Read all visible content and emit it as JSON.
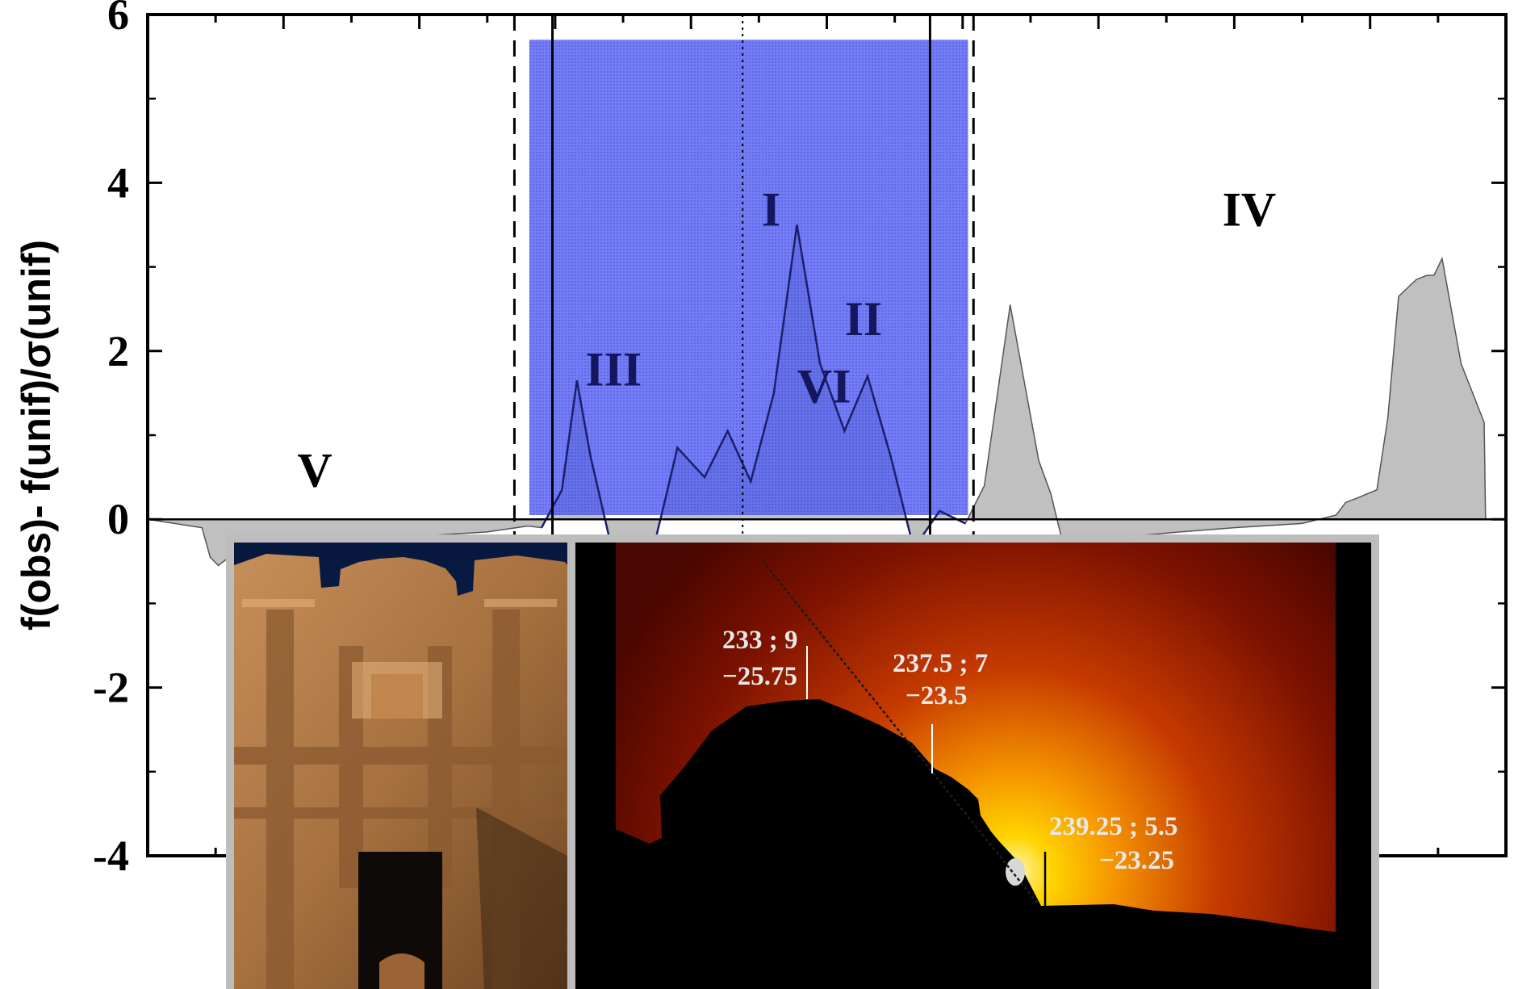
{
  "chart_data": {
    "type": "area",
    "title": "",
    "xlabel": "",
    "ylabel": "f(obs)- f(unif)/σ(unif)",
    "ylim": [
      -4,
      6
    ],
    "yticks": [
      6,
      4,
      2,
      0,
      -2,
      -4
    ],
    "ytick_labels": [
      "6",
      "4",
      "2",
      "0",
      "-2",
      "-4"
    ],
    "xlim": [
      0,
      100
    ],
    "grid": false,
    "legend": "none",
    "colors": {
      "fill": "#c0c0c0",
      "highlight_fill": "#3846e6",
      "highlight_line": "#1b1f6b",
      "label": "#141660"
    },
    "series": [
      {
        "x": [
          0,
          4,
          4.6,
          5.2,
          6,
          8,
          10,
          15,
          20,
          25,
          28,
          29,
          30.5,
          31.6,
          32.6,
          34.1,
          35.5,
          37.3,
          38.2,
          39.0,
          41.0,
          42.7,
          44.4,
          46.1,
          47.8,
          49.5,
          51.3,
          53.0,
          54.7,
          56.4,
          58.3,
          60.2,
          61.6,
          63.5,
          65.6,
          66.5,
          67.4,
          69.4,
          70.0,
          71.0,
          72.5,
          76,
          80,
          85,
          87.5,
          88.2,
          89.0,
          90.5,
          91.3,
          92.1,
          93.4,
          94.2,
          94.7,
          95.3,
          96.7,
          98.4,
          98.5,
          100
        ],
        "y": [
          0,
          -0.1,
          -0.45,
          -0.55,
          -0.45,
          -0.35,
          -0.3,
          -0.25,
          -0.2,
          -0.15,
          -0.08,
          -0.1,
          0.35,
          1.65,
          0.75,
          -0.3,
          -0.3,
          -0.3,
          0.3,
          0.85,
          0.5,
          1.05,
          0.45,
          1.5,
          3.5,
          1.85,
          1.05,
          1.7,
          0.75,
          -0.35,
          0.1,
          -0.05,
          0.4,
          2.55,
          0.7,
          0.3,
          -0.3,
          -0.35,
          -0.3,
          -0.25,
          -0.2,
          -0.15,
          -0.1,
          -0.05,
          0.05,
          0.2,
          0.25,
          0.35,
          1.2,
          2.65,
          2.85,
          2.9,
          2.9,
          3.1,
          1.85,
          1.15,
          0,
          0
        ]
      }
    ],
    "highlight_band": {
      "x": [
        28.1,
        60.4
      ],
      "y": [
        0.05,
        5.7
      ]
    },
    "dashed_lines_x": [
      27.0,
      60.8
    ],
    "solid_lines_x": [
      29.8,
      57.6
    ],
    "dotted_line_x": 43.8,
    "annotations": [
      {
        "text": "I",
        "x": 45.9,
        "y": 3.7
      },
      {
        "text": "II",
        "x": 52.7,
        "y": 2.4
      },
      {
        "text": "III",
        "x": 34.3,
        "y": 1.8
      },
      {
        "text": "IV",
        "x": 81.1,
        "y": 3.7
      },
      {
        "text": "V",
        "x": 12.3,
        "y": 0.6
      },
      {
        "text": "VI",
        "x": 49.8,
        "y": 1.6
      }
    ]
  },
  "inset": {
    "photo1": "rock-cut-monument-facade",
    "photo2": "sunset-behind-ridge",
    "labels": [
      {
        "line1": "233 ; 9",
        "line2": "−25.75"
      },
      {
        "line1": "237.5 ; 7",
        "line2": "−23.5"
      },
      {
        "line1": "239.25 ; 5.5",
        "line2": "−23.25"
      }
    ]
  }
}
